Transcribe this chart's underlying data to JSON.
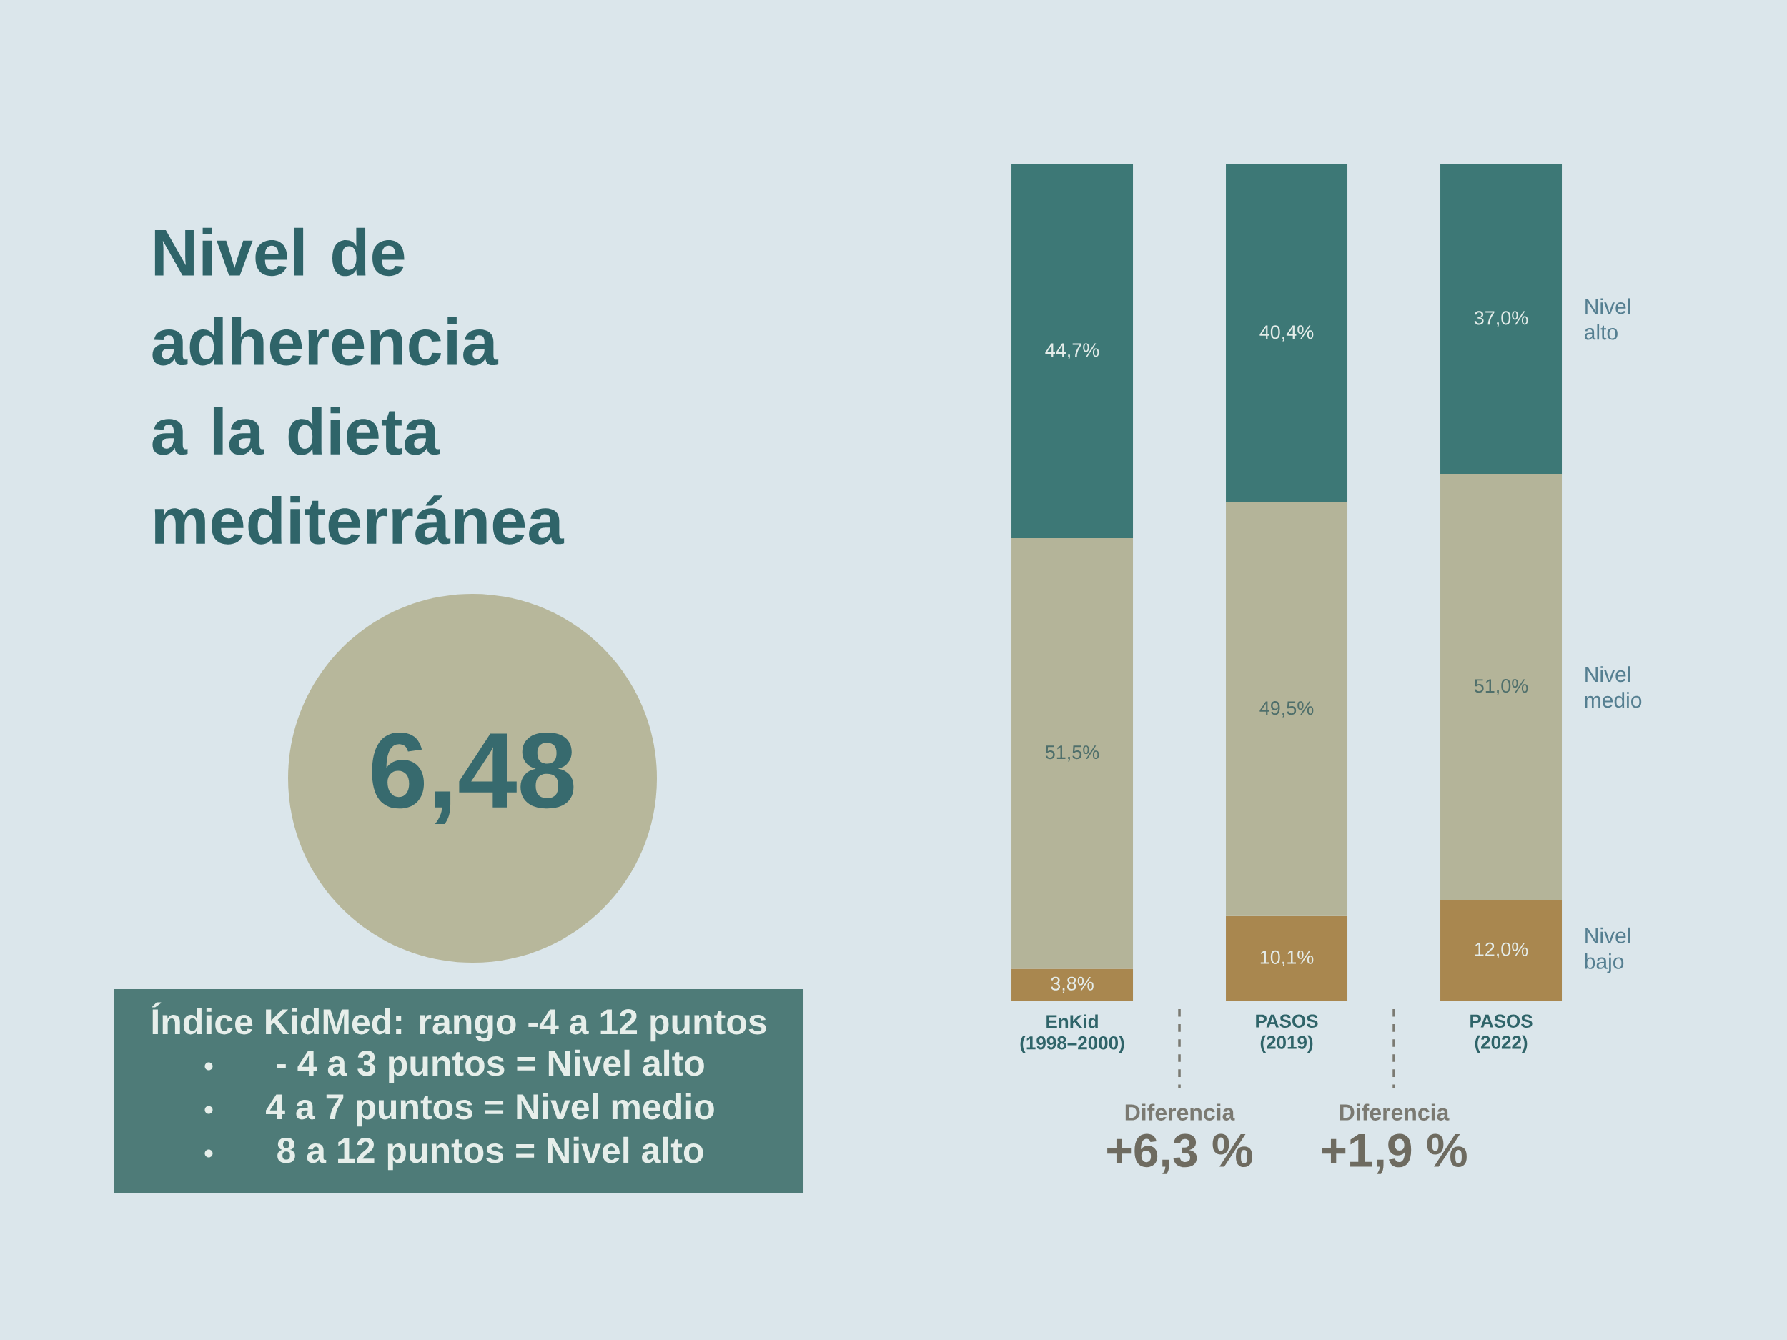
{
  "chart_data": [
    {
      "type": "other",
      "title": "Nivel de adherencia a la dieta mediterránea",
      "annotations": [
        "6,48",
        "Índice KidMed: rango -4 a 12 puntos",
        "- 4 a 3 puntos = Nivel alto",
        "4 a 7 puntos = Nivel medio",
        "8 a 12 puntos = Nivel alto"
      ]
    },
    {
      "type": "bar",
      "stacked": true,
      "categories": [
        "EnKid (1998–2000)",
        "PASOS (2019)",
        "PASOS (2022)"
      ],
      "series": [
        {
          "name": "Nivel bajo",
          "color": "#a9874f",
          "values": [
            3.8,
            10.1,
            12.0
          ],
          "value_labels": [
            "3,8%",
            "10,1%",
            "12,0%"
          ]
        },
        {
          "name": "Nivel medio",
          "color": "#b4b499",
          "values": [
            51.5,
            49.5,
            51.0
          ],
          "value_labels": [
            "51,5%",
            "49,5%",
            "51,0%"
          ]
        },
        {
          "name": "Nivel alto",
          "color": "#3d7876",
          "values": [
            44.7,
            40.4,
            37.0
          ],
          "value_labels": [
            "44,7%",
            "40,4%",
            "37,0%"
          ]
        }
      ],
      "annotations": [
        "Diferencia",
        "+6,3 %",
        "Diferencia",
        "+1,9 %"
      ]
    }
  ]
}
